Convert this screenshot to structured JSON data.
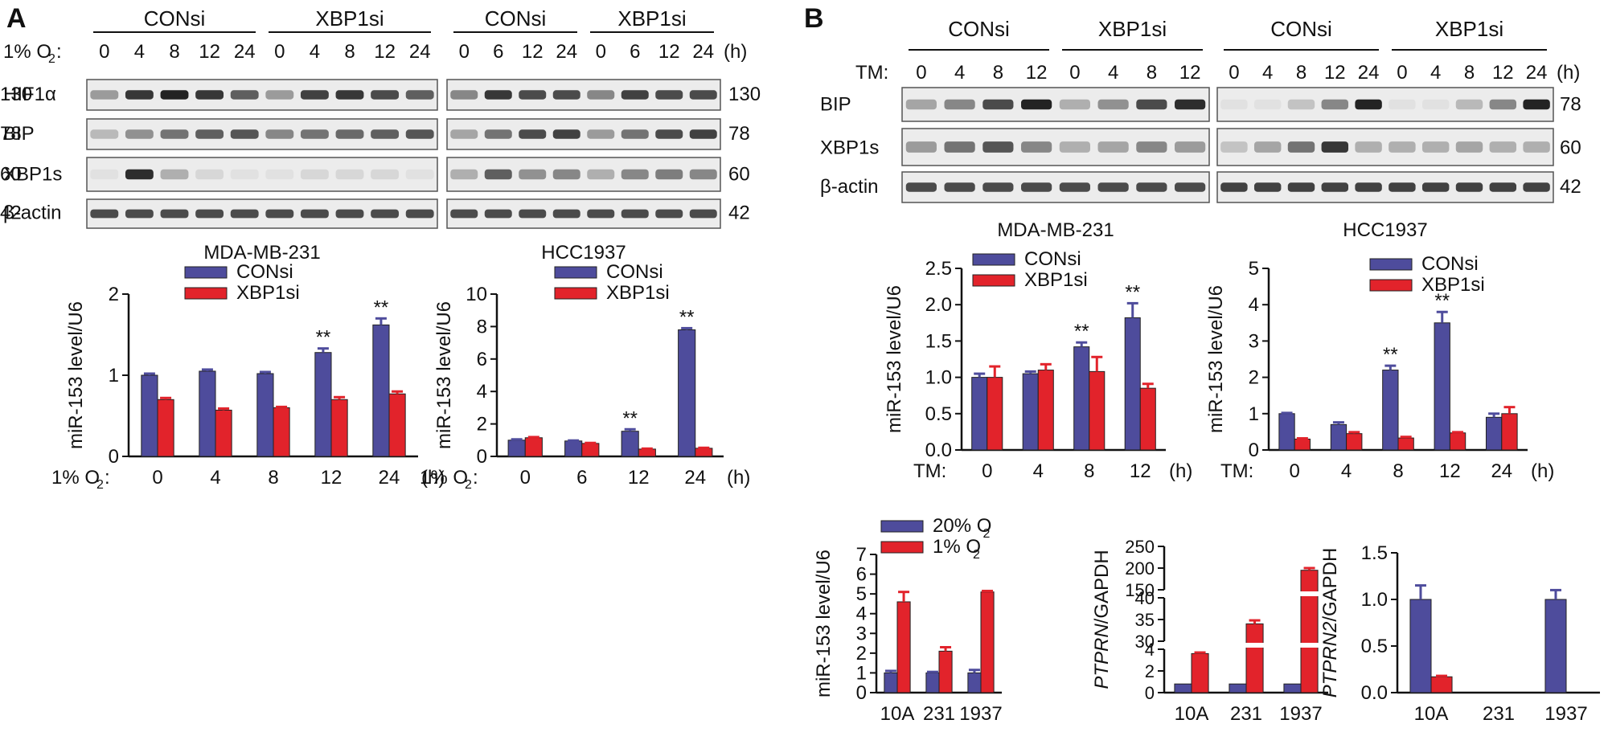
{
  "colors": {
    "blue": "#4e4c9c",
    "red": "#e2232b",
    "ink": "#111111"
  },
  "panels": {
    "a": "A",
    "b": "B"
  },
  "blots": [
    {
      "id": "blotA1",
      "cell_line": "MDA-MB-231",
      "treat_label": "1% O",
      "treat_sub": "2",
      "treat_suffix": ":",
      "groups": [
        "CONsi",
        "XBP1si"
      ],
      "lanes": [
        "0",
        "4",
        "8",
        "12",
        "24",
        "0",
        "4",
        "8",
        "12",
        "24"
      ],
      "unit": "",
      "rows": [
        {
          "label": "HIF1α",
          "mw": "130"
        },
        {
          "label": "BIP",
          "mw": "78"
        },
        {
          "label": "XBP1s",
          "mw": "60"
        },
        {
          "label": "β-actin",
          "mw": "42"
        }
      ],
      "intensity": [
        [
          0.4,
          0.9,
          1,
          0.9,
          0.7,
          0.4,
          0.85,
          0.9,
          0.8,
          0.7
        ],
        [
          0.25,
          0.45,
          0.6,
          0.7,
          0.75,
          0.5,
          0.6,
          0.65,
          0.7,
          0.75
        ],
        [
          0.05,
          0.95,
          0.3,
          0.1,
          0.05,
          0.05,
          0.1,
          0.1,
          0.1,
          0.05
        ],
        [
          0.8,
          0.8,
          0.8,
          0.8,
          0.8,
          0.8,
          0.8,
          0.8,
          0.8,
          0.8
        ]
      ]
    },
    {
      "id": "blotA2",
      "cell_line": "HCC1937",
      "groups": [
        "CONsi",
        "XBP1si"
      ],
      "lanes": [
        "0",
        "6",
        "12",
        "24",
        "0",
        "6",
        "12",
        "24"
      ],
      "unit": "(h)",
      "rows": [
        {
          "label": "",
          "mw": "130"
        },
        {
          "label": "",
          "mw": "78"
        },
        {
          "label": "",
          "mw": "60"
        },
        {
          "label": "",
          "mw": "42"
        }
      ],
      "intensity": [
        [
          0.5,
          0.9,
          0.8,
          0.8,
          0.5,
          0.85,
          0.8,
          0.8
        ],
        [
          0.35,
          0.6,
          0.8,
          0.85,
          0.4,
          0.6,
          0.8,
          0.85
        ],
        [
          0.3,
          0.7,
          0.45,
          0.5,
          0.3,
          0.5,
          0.55,
          0.5
        ],
        [
          0.8,
          0.8,
          0.8,
          0.8,
          0.8,
          0.8,
          0.8,
          0.8
        ]
      ]
    },
    {
      "id": "blotB1",
      "cell_line": "MDA-MB-231",
      "treat_label": "TM:",
      "groups": [
        "CONsi",
        "XBP1si"
      ],
      "lanes": [
        "0",
        "4",
        "8",
        "12",
        "0",
        "4",
        "8",
        "12"
      ],
      "unit": "",
      "rows": [
        {
          "label": "BIP",
          "mw": ""
        },
        {
          "label": "XBP1s",
          "mw": ""
        },
        {
          "label": "β-actin",
          "mw": ""
        }
      ],
      "intensity": [
        [
          0.35,
          0.5,
          0.8,
          1,
          0.3,
          0.45,
          0.8,
          0.95
        ],
        [
          0.4,
          0.6,
          0.75,
          0.5,
          0.3,
          0.35,
          0.5,
          0.4
        ],
        [
          0.8,
          0.8,
          0.8,
          0.8,
          0.8,
          0.8,
          0.8,
          0.8
        ]
      ]
    },
    {
      "id": "blotB2",
      "cell_line": "HCC1937",
      "groups": [
        "CONsi",
        "XBP1si"
      ],
      "lanes": [
        "0",
        "4",
        "8",
        "12",
        "24",
        "0",
        "4",
        "8",
        "12",
        "24"
      ],
      "unit": "(h)",
      "rows": [
        {
          "label": "",
          "mw": "78"
        },
        {
          "label": "",
          "mw": "60"
        },
        {
          "label": "",
          "mw": "42"
        }
      ],
      "intensity": [
        [
          0.05,
          0.05,
          0.2,
          0.5,
          1,
          0.05,
          0.05,
          0.25,
          0.5,
          1
        ],
        [
          0.2,
          0.35,
          0.6,
          0.9,
          0.3,
          0.3,
          0.3,
          0.35,
          0.3,
          0.3
        ],
        [
          0.85,
          0.85,
          0.85,
          0.85,
          0.85,
          0.85,
          0.85,
          0.85,
          0.85,
          0.85
        ]
      ]
    }
  ],
  "chart_data": [
    {
      "id": "cA1",
      "type": "bar",
      "ylabel": "miR-153 level/U6",
      "ylim": [
        0,
        2
      ],
      "yticks": [
        "0",
        "1",
        "2"
      ],
      "x_prefix": "1% O",
      "x_prefix_sub": "2",
      "x_prefix_suffix": ":",
      "categories": [
        "0",
        "4",
        "8",
        "12",
        "24"
      ],
      "x_unit": "(h)",
      "series": [
        {
          "name": "CONsi",
          "values": [
            1.0,
            1.05,
            1.02,
            1.28,
            1.62
          ],
          "err": [
            0.02,
            0.02,
            0.02,
            0.05,
            0.08
          ]
        },
        {
          "name": "XBP1si",
          "values": [
            0.7,
            0.57,
            0.6,
            0.7,
            0.77
          ],
          "err": [
            0.02,
            0.02,
            0.01,
            0.03,
            0.03
          ]
        }
      ],
      "annotations": [
        {
          "cat": 3,
          "text": "**"
        },
        {
          "cat": 4,
          "text": "**"
        }
      ]
    },
    {
      "id": "cA2",
      "type": "bar",
      "ylabel": "miR-153 level/U6",
      "ylim": [
        0,
        10
      ],
      "yticks": [
        "0",
        "2",
        "4",
        "6",
        "8",
        "10"
      ],
      "x_prefix": "1% O",
      "x_prefix_sub": "2",
      "x_prefix_suffix": ":",
      "categories": [
        "0",
        "6",
        "12",
        "24"
      ],
      "x_unit": "(h)",
      "series": [
        {
          "name": "CONsi",
          "values": [
            1.0,
            0.95,
            1.55,
            7.8
          ],
          "err": [
            0.05,
            0.03,
            0.12,
            0.1
          ]
        },
        {
          "name": "XBP1si",
          "values": [
            1.15,
            0.8,
            0.45,
            0.5
          ],
          "err": [
            0.04,
            0.03,
            0.03,
            0.03
          ]
        }
      ],
      "annotations": [
        {
          "cat": 2,
          "text": "**"
        },
        {
          "cat": 3,
          "text": "**"
        }
      ]
    },
    {
      "id": "cB1",
      "type": "bar",
      "ylabel": "miR-153 level/U6",
      "ylim": [
        0,
        2.5
      ],
      "yticks": [
        "0.0",
        "0.5",
        "1.0",
        "1.5",
        "2.0",
        "2.5"
      ],
      "x_prefix": "TM:",
      "categories": [
        "0",
        "4",
        "8",
        "12"
      ],
      "x_unit": "(h)",
      "series": [
        {
          "name": "CONsi",
          "values": [
            1.0,
            1.05,
            1.42,
            1.82
          ],
          "err": [
            0.05,
            0.03,
            0.06,
            0.2
          ]
        },
        {
          "name": "XBP1si",
          "values": [
            1.0,
            1.1,
            1.08,
            0.85
          ],
          "err": [
            0.15,
            0.08,
            0.2,
            0.06
          ]
        }
      ],
      "annotations": [
        {
          "cat": 2,
          "text": "**"
        },
        {
          "cat": 3,
          "text": "**"
        }
      ]
    },
    {
      "id": "cB2",
      "type": "bar",
      "ylabel": "miR-153 level/U6",
      "ylim": [
        0,
        5
      ],
      "yticks": [
        "0",
        "1",
        "2",
        "3",
        "4",
        "5"
      ],
      "x_prefix": "TM:",
      "categories": [
        "0",
        "4",
        "8",
        "12",
        "24"
      ],
      "x_unit": "(h)",
      "series": [
        {
          "name": "CONsi",
          "values": [
            1.0,
            0.7,
            2.2,
            3.5,
            0.9
          ],
          "err": [
            0.02,
            0.06,
            0.12,
            0.3,
            0.1
          ]
        },
        {
          "name": "XBP1si",
          "values": [
            0.3,
            0.45,
            0.33,
            0.47,
            1.0
          ],
          "err": [
            0.02,
            0.04,
            0.03,
            0.02,
            0.18
          ]
        }
      ],
      "annotations": [
        {
          "cat": 2,
          "text": "**"
        },
        {
          "cat": 3,
          "text": "**"
        }
      ]
    },
    {
      "id": "cB3",
      "type": "bar",
      "ylabel": "miR-153 level/U6",
      "ylim": [
        0,
        7
      ],
      "yticks": [
        "0",
        "1",
        "2",
        "3",
        "4",
        "5",
        "6",
        "7"
      ],
      "categories": [
        "10A",
        "231",
        "1937"
      ],
      "series": [
        {
          "name": "20% O",
          "sub": "2",
          "values": [
            1.0,
            1.0,
            1.0
          ],
          "err": [
            0.1,
            0.05,
            0.15
          ]
        },
        {
          "name": "1% O",
          "sub": "2",
          "values": [
            4.6,
            2.1,
            5.1
          ],
          "err": [
            0.5,
            0.2,
            0.05
          ]
        }
      ]
    },
    {
      "id": "cB4",
      "type": "bar",
      "ylabel_italic": "PTPRN",
      "ylabel_rest": "/GAPDH",
      "broken_axis": [
        {
          "range": [
            0,
            4
          ],
          "ticks": [
            "0",
            "2",
            "4"
          ]
        },
        {
          "range": [
            30,
            40
          ],
          "ticks": [
            "30",
            "35",
            "40"
          ]
        },
        {
          "range": [
            150,
            250
          ],
          "ticks": [
            "150",
            "200",
            "250"
          ]
        }
      ],
      "categories": [
        "10A",
        "231",
        "1937"
      ],
      "series": [
        {
          "name": "20% O2",
          "values": [
            0.8,
            0.8,
            0.8
          ],
          "err": [
            0,
            0,
            0
          ]
        },
        {
          "name": "1% O2",
          "values": [
            3.6,
            34,
            195
          ],
          "err": [
            0.1,
            0.8,
            5
          ]
        }
      ]
    },
    {
      "id": "cB5",
      "type": "bar",
      "ylabel_italic": "PTPRN2",
      "ylabel_rest": "/GAPDH",
      "ylim": [
        0,
        1.5
      ],
      "yticks": [
        "0.0",
        "0.5",
        "1.0",
        "1.5"
      ],
      "categories": [
        "10A",
        "231",
        "1937"
      ],
      "series": [
        {
          "name": "20% O2",
          "values": [
            1.0,
            0,
            1.0
          ],
          "err": [
            0.15,
            0,
            0.1
          ]
        },
        {
          "name": "1% O2",
          "values": [
            0.17,
            0,
            0
          ],
          "err": [
            0.01,
            0,
            0
          ]
        }
      ]
    }
  ]
}
